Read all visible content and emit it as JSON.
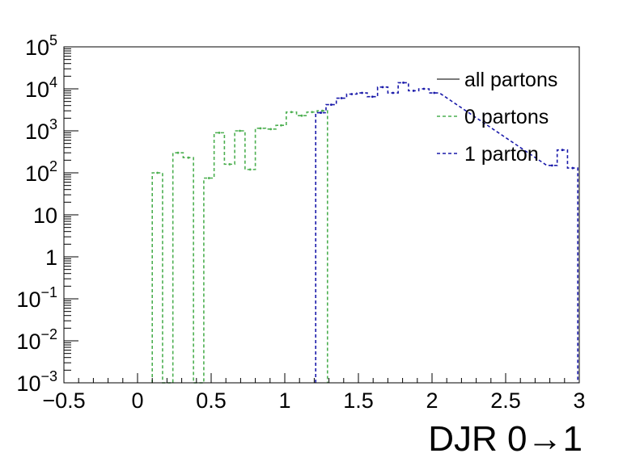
{
  "chart_data": {
    "type": "line",
    "title": "",
    "xlabel": "DJR 0→1",
    "ylabel": "",
    "x_range": [
      -0.5,
      3.0
    ],
    "y_range": [
      0.001,
      100000
    ],
    "y_scale": "log",
    "grid": false,
    "legend_position": "top-right",
    "x_ticks": [
      {
        "v": -0.5,
        "label": "−0.5"
      },
      {
        "v": 0,
        "label": "0"
      },
      {
        "v": 0.5,
        "label": "0.5"
      },
      {
        "v": 1,
        "label": "1"
      },
      {
        "v": 1.5,
        "label": "1.5"
      },
      {
        "v": 2,
        "label": "2"
      },
      {
        "v": 2.5,
        "label": "2.5"
      },
      {
        "v": 3,
        "label": "3"
      }
    ],
    "y_ticks": [
      {
        "v": 0.001,
        "base": "10",
        "exp": "−3"
      },
      {
        "v": 0.01,
        "base": "10",
        "exp": "−2"
      },
      {
        "v": 0.1,
        "base": "10",
        "exp": "−1"
      },
      {
        "v": 1,
        "base": "1",
        "exp": ""
      },
      {
        "v": 10,
        "base": "10",
        "exp": ""
      },
      {
        "v": 100,
        "base": "10",
        "exp": "2"
      },
      {
        "v": 1000,
        "base": "10",
        "exp": "3"
      },
      {
        "v": 10000,
        "base": "10",
        "exp": "4"
      },
      {
        "v": 100000,
        "base": "10",
        "exp": "5"
      }
    ],
    "bin_width": 0.07,
    "series": [
      {
        "name": "all partons",
        "color": "#4f4f4f",
        "style": "solid",
        "points": [
          [
            1.995,
            9000
          ]
        ]
      },
      {
        "name": "0 partons",
        "color": "#4caf50",
        "style": "dashed",
        "points": [
          [
            0.135,
            100
          ],
          [
            0.205,
            0.001
          ],
          [
            0.275,
            300
          ],
          [
            0.345,
            230
          ],
          [
            0.415,
            0.001
          ],
          [
            0.485,
            75
          ],
          [
            0.555,
            900
          ],
          [
            0.625,
            160
          ],
          [
            0.695,
            1000
          ],
          [
            0.765,
            120
          ],
          [
            0.835,
            1150
          ],
          [
            0.905,
            1100
          ],
          [
            0.975,
            1350
          ],
          [
            1.045,
            2800
          ],
          [
            1.115,
            2300
          ],
          [
            1.185,
            2800
          ],
          [
            1.255,
            3000
          ]
        ]
      },
      {
        "name": "1 parton",
        "color": "#1a1aaa",
        "style": "dashed",
        "points": [
          [
            1.245,
            2700
          ],
          [
            1.315,
            4200
          ],
          [
            1.385,
            6000
          ],
          [
            1.455,
            7500
          ],
          [
            1.525,
            8000
          ],
          [
            1.595,
            6500
          ],
          [
            1.665,
            11000
          ],
          [
            1.735,
            8000
          ],
          [
            1.805,
            14000
          ],
          [
            1.875,
            9000
          ],
          [
            1.945,
            10000
          ],
          [
            2.015,
            8000
          ],
          [
            2.815,
            150
          ],
          [
            2.885,
            350
          ],
          [
            2.955,
            130
          ]
        ]
      }
    ]
  }
}
